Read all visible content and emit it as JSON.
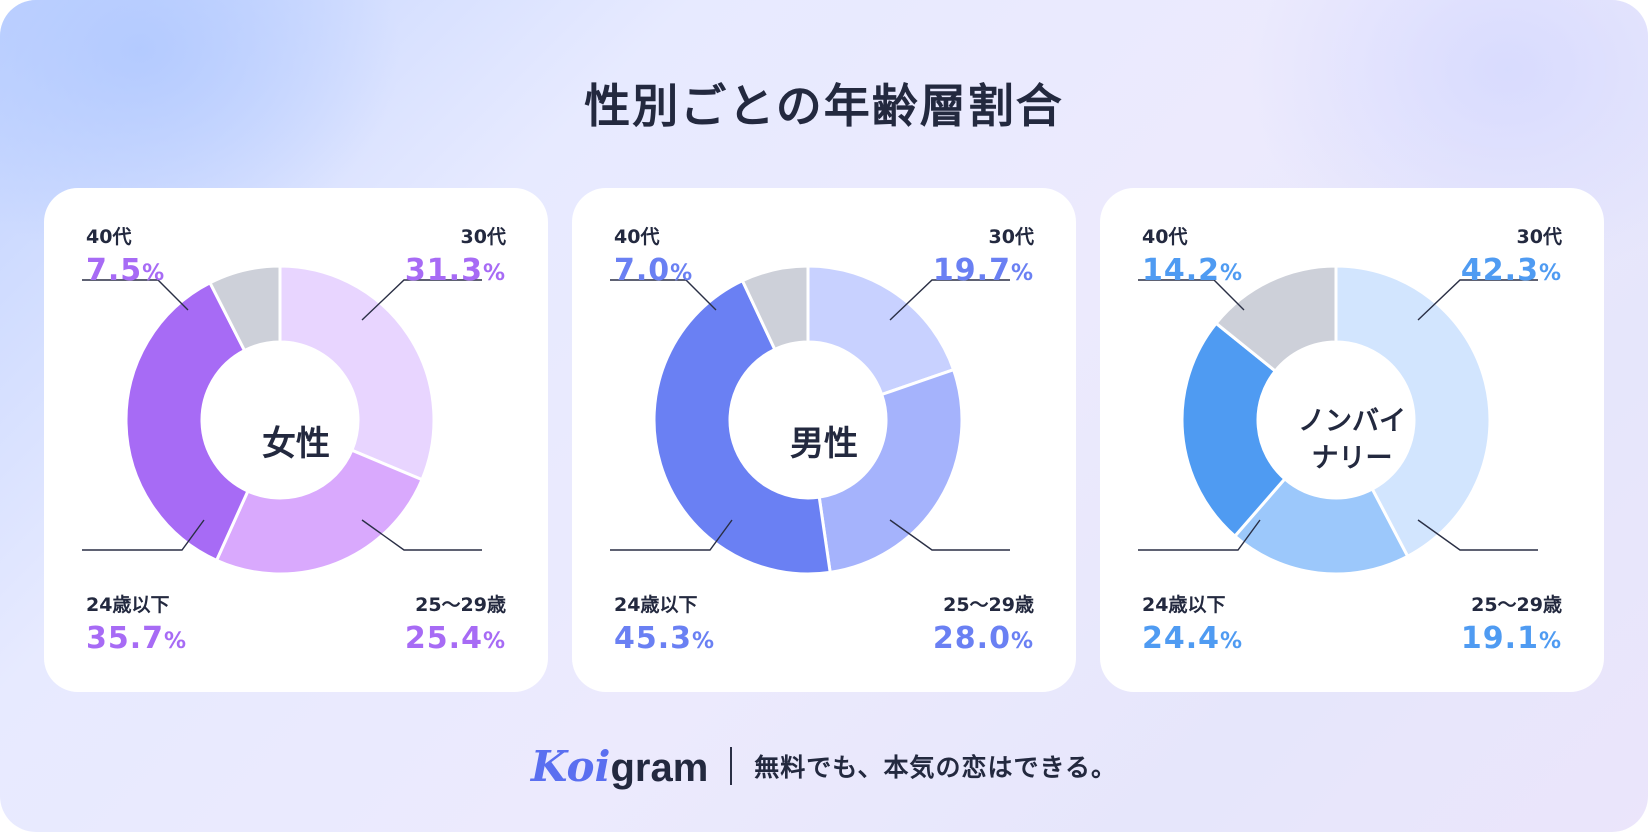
{
  "title": "性別ごとの年齢層割合",
  "footer": {
    "logo_part1": "Koi",
    "logo_part2": "gram",
    "tagline": "無料でも、本気の恋はできる。"
  },
  "chart_data": [
    {
      "type": "pie",
      "variant": "donut",
      "center_label": "女性",
      "accent": "#a76bf5",
      "categories": [
        "30代",
        "25〜29歳",
        "24歳以下",
        "40代"
      ],
      "values": [
        31.3,
        25.4,
        35.7,
        7.5
      ],
      "value_text": [
        "31.3",
        "25.4",
        "35.7",
        "7.5"
      ],
      "unit": "%",
      "colors": [
        "#e8d5ff",
        "#d9a9fd",
        "#a76bf5",
        "#cdd0d9"
      ]
    },
    {
      "type": "pie",
      "variant": "donut",
      "center_label": "男性",
      "accent": "#6a80f3",
      "categories": [
        "30代",
        "25〜29歳",
        "24歳以下",
        "40代"
      ],
      "values": [
        19.7,
        28.0,
        45.3,
        7.0
      ],
      "value_text": [
        "19.7",
        "28.0",
        "45.3",
        "7.0"
      ],
      "unit": "%",
      "colors": [
        "#c8d1ff",
        "#a5b3fc",
        "#6a80f3",
        "#cdd0d9"
      ]
    },
    {
      "type": "pie",
      "variant": "donut",
      "center_label": [
        "ノンバイ",
        "ナリー"
      ],
      "accent": "#4f9bf2",
      "categories": [
        "30代",
        "25〜29歳",
        "24歳以下",
        "40代"
      ],
      "values": [
        42.3,
        19.1,
        24.4,
        14.2
      ],
      "value_text": [
        "42.3",
        "19.1",
        "24.4",
        "14.2"
      ],
      "unit": "%",
      "colors": [
        "#d2e5fe",
        "#9cc8fb",
        "#4f9bf2",
        "#cdd0d9"
      ]
    }
  ]
}
